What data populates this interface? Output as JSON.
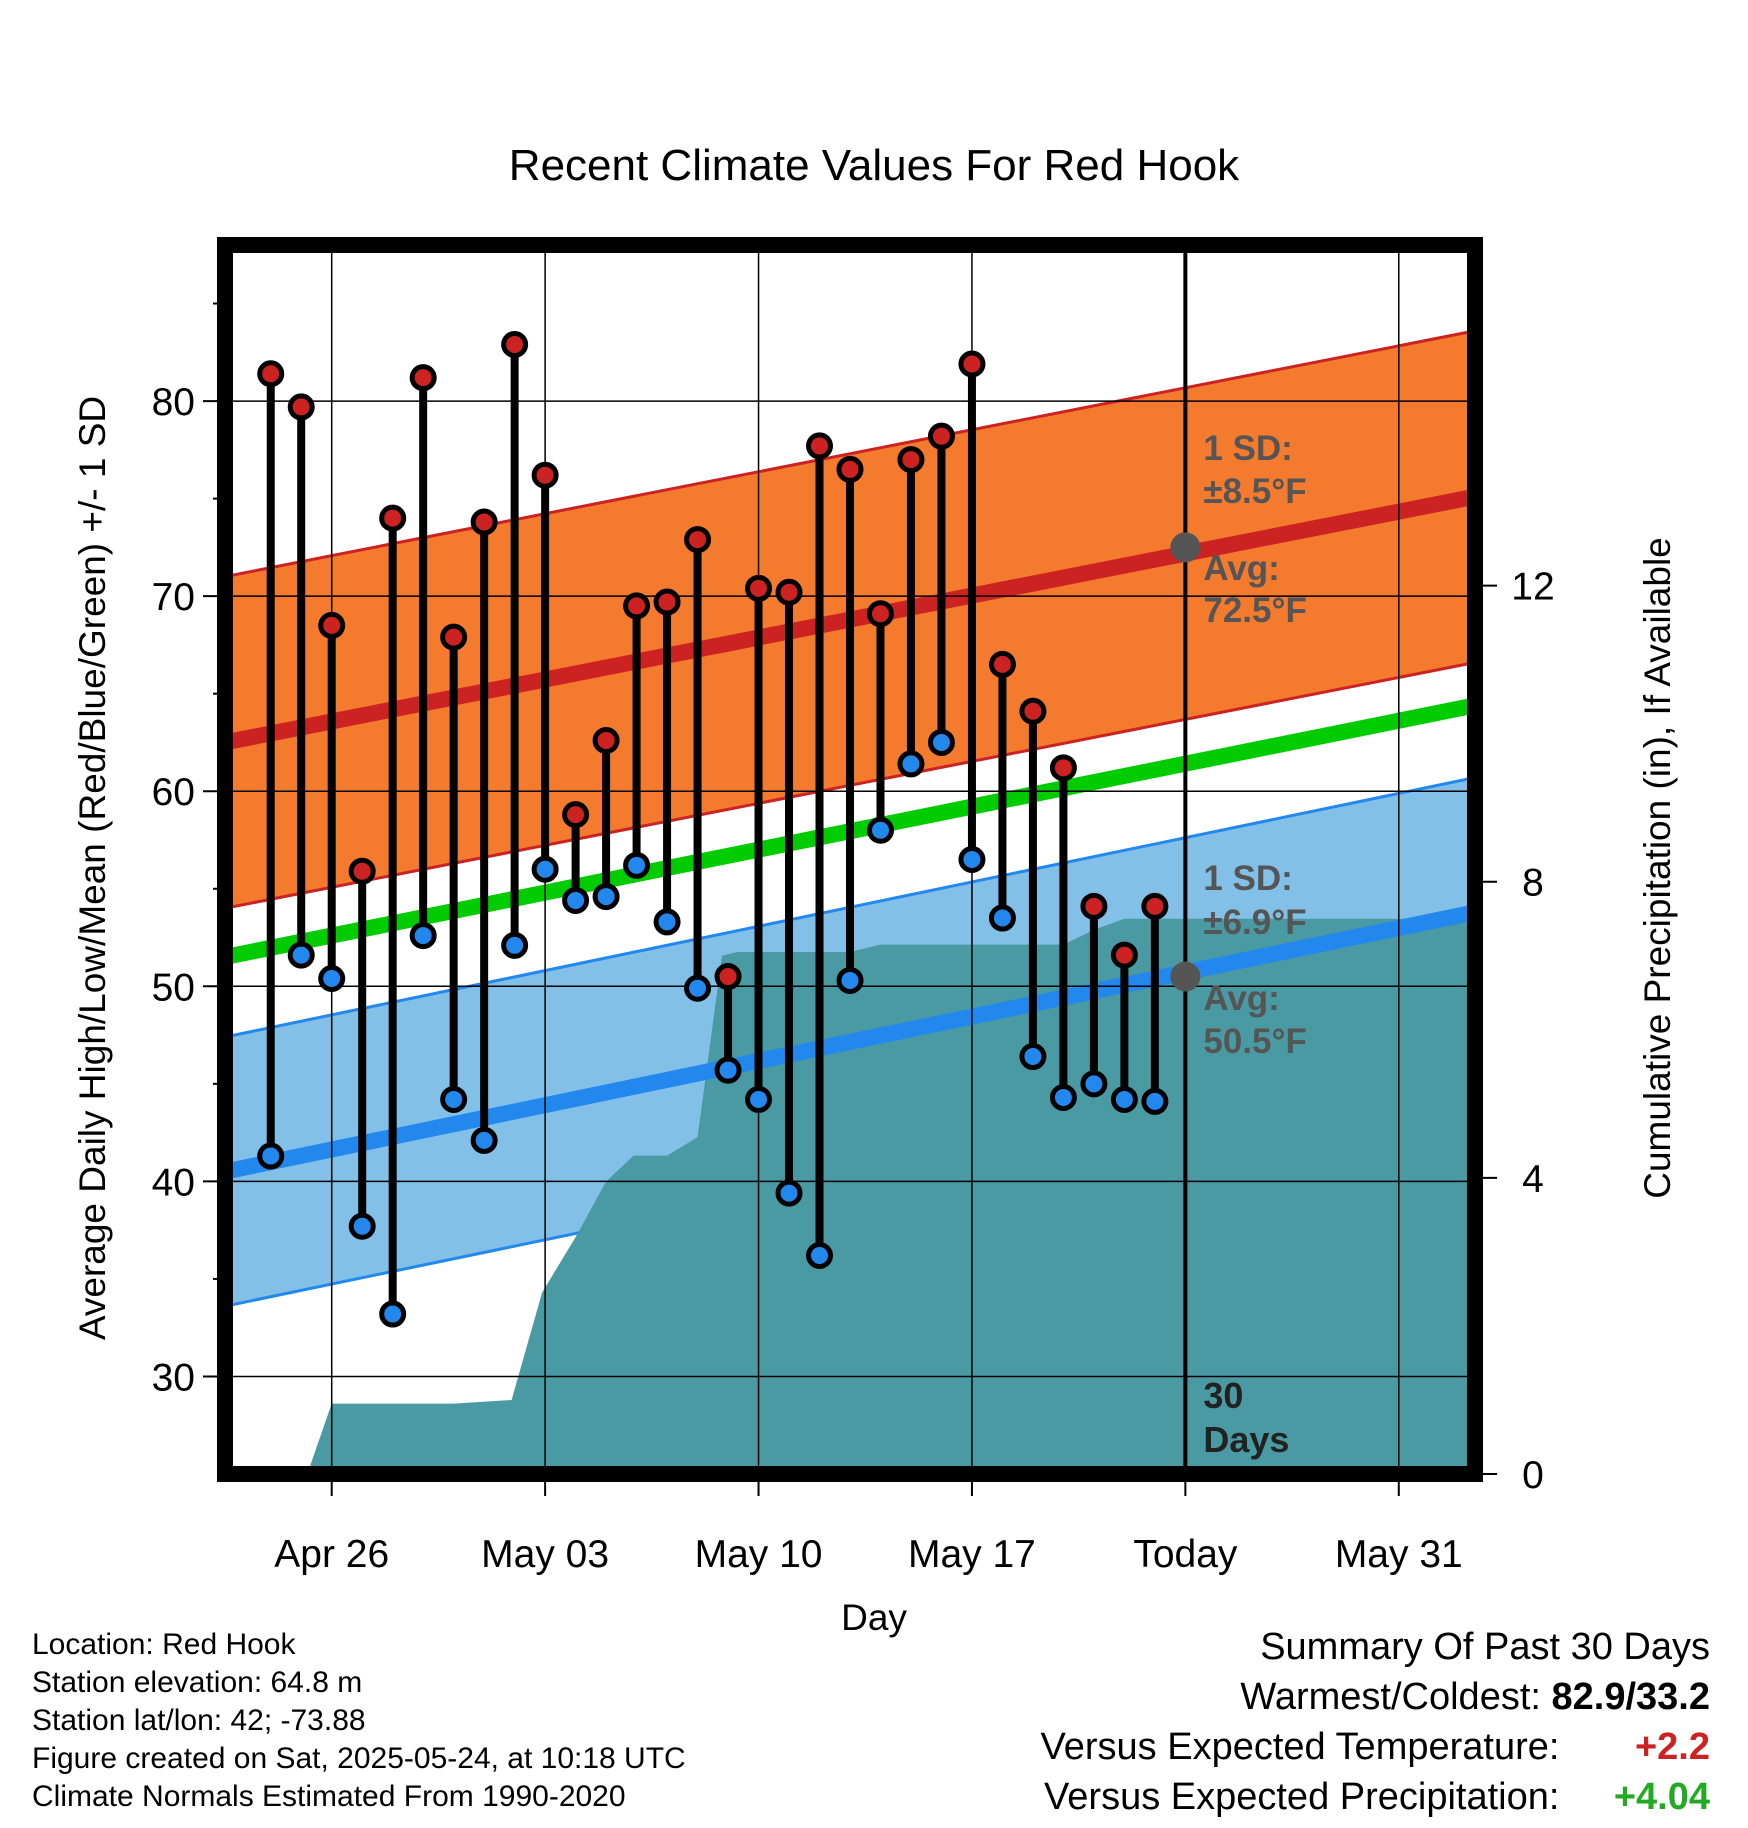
{
  "colors": {
    "high_dot": "#cc2222",
    "low_dot": "#2288ee",
    "avg_high_line": "#cc2222",
    "avg_low_line": "#2288ee",
    "mean_line": "#00cc00",
    "high_band": "#f47a2e",
    "low_band": "#82c0e8",
    "precip_fill": "#4a9aa4",
    "warm_text": "#cc2222",
    "precip_text": "#22aa22"
  },
  "chart_data": {
    "type": "line",
    "title": "Recent Climate Values For Red Hook",
    "xlabel": "Day",
    "ylabel": "Average Daily High/Low/Mean (Red/Blue/Green) +/- 1 SD",
    "y2label": "Cumulative Precipitation (in), If Available",
    "x_tick_labels": [
      "Apr 26",
      "May 03",
      "May 10",
      "May 17",
      "Today",
      "May 31"
    ],
    "x_range_days": [
      -31.5,
      9.5
    ],
    "x_tick_days": [
      -28,
      -21,
      -14,
      -7,
      0,
      7
    ],
    "ylim": [
      25,
      88
    ],
    "y_ticks": [
      30,
      40,
      50,
      60,
      70,
      80
    ],
    "y2lim": [
      0,
      16.6
    ],
    "y2_ticks": [
      0,
      4,
      8,
      12
    ],
    "grid": true,
    "daily_days": [
      -30,
      -29,
      -28,
      -27,
      -26,
      -25,
      -24,
      -23,
      -22,
      -21,
      -20,
      -19,
      -18,
      -17,
      -16,
      -15,
      -14,
      -13,
      -12,
      -11,
      -10,
      -9,
      -8,
      -7,
      -6,
      -5,
      -4,
      -3,
      -2,
      -1
    ],
    "daily_high": [
      81.4,
      79.7,
      68.5,
      55.9,
      74.0,
      81.2,
      67.9,
      73.8,
      82.9,
      76.2,
      58.8,
      62.6,
      69.5,
      69.7,
      72.9,
      50.5,
      70.4,
      70.2,
      77.7,
      76.5,
      69.1,
      77.0,
      78.2,
      81.9,
      66.5,
      64.1,
      61.2,
      54.1,
      51.6,
      54.1
    ],
    "daily_low": [
      41.3,
      51.6,
      50.4,
      37.7,
      33.2,
      52.6,
      44.2,
      42.1,
      52.1,
      56.0,
      54.4,
      54.6,
      56.2,
      53.3,
      49.9,
      45.7,
      44.2,
      39.4,
      36.2,
      50.3,
      58.0,
      61.4,
      62.5,
      56.5,
      53.5,
      46.4,
      44.3,
      45.0,
      44.2,
      44.1
    ],
    "normal_days": [
      -31.5,
      9.5
    ],
    "normal_high": [
      62.5,
      75.1
    ],
    "normal_low": [
      40.5,
      53.8
    ],
    "normal_mean": [
      51.5,
      64.4
    ],
    "sd_high": 8.5,
    "sd_low": 6.9,
    "precip_days": [
      -31.5,
      -28.8,
      -28,
      -24,
      -22.1,
      -21.1,
      -20,
      -19,
      -18.1,
      -17,
      -16,
      -15.2,
      -14.7,
      -14,
      -13.5,
      -12,
      -11,
      -10,
      -9,
      -8,
      -7,
      -6,
      -4,
      -3,
      -2,
      -1,
      9.5
    ],
    "precip_cum": [
      0,
      0,
      0.95,
      0.95,
      1.0,
      2.45,
      3.2,
      3.95,
      4.3,
      4.3,
      4.55,
      7.0,
      7.05,
      7.05,
      7.05,
      7.05,
      7.05,
      7.15,
      7.15,
      7.15,
      7.15,
      7.15,
      7.15,
      7.35,
      7.5,
      7.5,
      7.5
    ],
    "annotations": {
      "sd_high_line1": "1 SD:",
      "sd_high_line2": "±8.5°F",
      "avg_high_line1": "Avg:",
      "avg_high_line2": "72.5°F",
      "sd_low_line1": "1 SD:",
      "sd_low_line2": "±6.9°F",
      "avg_low_line1": "Avg:",
      "avg_low_line2": "50.5°F",
      "days_line1": "30",
      "days_line2": "Days"
    },
    "today_avg_high": 72.5,
    "today_avg_low": 50.5
  },
  "info": {
    "location": "Location: Red Hook",
    "elevation": "Station elevation: 64.8 m",
    "latlon": "Station lat/lon: 42; -73.88",
    "created": "Figure created on Sat, 2025-05-24, at 10:18 UTC",
    "normals": "Climate Normals Estimated From 1990-2020"
  },
  "summary": {
    "heading": "Summary Of Past 30 Days",
    "warmest_coldest_label": "Warmest/Coldest:",
    "warmest_coldest_value": "82.9/33.2",
    "temp_label": "Versus Expected Temperature:",
    "temp_value": "+2.2",
    "precip_label": "Versus Expected Precipitation:",
    "precip_value": "+4.04"
  }
}
